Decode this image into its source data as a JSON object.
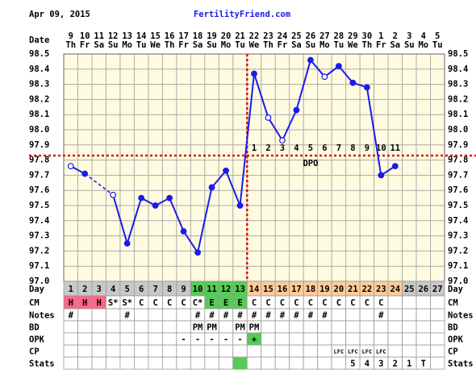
{
  "header": {
    "date": "Apr 09, 2015",
    "site": "FertilityFriend.com"
  },
  "chart_data": {
    "type": "line",
    "date_label": "Date",
    "dates": [
      9,
      10,
      11,
      12,
      13,
      14,
      15,
      16,
      17,
      18,
      19,
      20,
      21,
      22,
      23,
      24,
      25,
      26,
      27,
      28,
      29,
      30,
      1,
      2,
      3,
      4,
      5
    ],
    "weekdays": [
      "Th",
      "Fr",
      "Sa",
      "Su",
      "Mo",
      "Tu",
      "We",
      "Th",
      "Fr",
      "Sa",
      "Su",
      "Mo",
      "Tu",
      "We",
      "Th",
      "Fr",
      "Sa",
      "Su",
      "Mo",
      "Tu",
      "We",
      "Th",
      "Fr",
      "Sa",
      "Su",
      "Mo",
      "Tu"
    ],
    "series": [
      {
        "color": "#1a1aee",
        "values": [
          97.76,
          97.71,
          null,
          97.57,
          97.25,
          97.55,
          97.5,
          97.55,
          97.33,
          97.19,
          97.62,
          97.73,
          97.5,
          98.37,
          98.08,
          97.93,
          98.13,
          98.46,
          98.35,
          98.42,
          98.31,
          98.28,
          97.7,
          97.76,
          null,
          null,
          null
        ],
        "markers": [
          "open",
          "filled",
          null,
          "open",
          "filled",
          "filled",
          "filled",
          "filled",
          "filled",
          "filled",
          "filled",
          "filled",
          "filled",
          "filled",
          "open",
          "open",
          "filled",
          "filled",
          "open",
          "filled",
          "filled",
          "filled",
          "filled",
          "filled",
          null,
          null,
          null
        ]
      }
    ],
    "ylim": [
      97,
      98.5
    ],
    "yticks": [
      {
        "value": 97,
        "label": "97.0"
      },
      97.1,
      97.2,
      97.3,
      97.4,
      97.5,
      97.6,
      97.7,
      97.8,
      97.9,
      {
        "value": 98,
        "label": "98.0"
      },
      98.1,
      98.2,
      98.3,
      98.4,
      98.5
    ],
    "grid": true,
    "coverline": 97.83,
    "ovulation_day": 13,
    "line_color": "#dd1111",
    "dpo_label": "DPO",
    "dpo": [
      null,
      null,
      null,
      null,
      null,
      null,
      null,
      null,
      null,
      null,
      null,
      null,
      null,
      1,
      2,
      3,
      4,
      5,
      6,
      7,
      8,
      9,
      10,
      11,
      null,
      null,
      null
    ],
    "rows": [
      {
        "label": "Day",
        "cells": [
          1,
          2,
          3,
          4,
          5,
          6,
          7,
          8,
          9,
          10,
          11,
          12,
          13,
          14,
          15,
          16,
          17,
          18,
          19,
          20,
          21,
          22,
          23,
          24,
          25,
          26,
          27
        ],
        "colors": [
          "#c8c8c8",
          "#c8c8c8",
          "#c8c8c8",
          "#c8c8c8",
          "#c8c8c8",
          "#c8c8c8",
          "#c8c8c8",
          "#c8c8c8",
          "#c8c8c8",
          "#55cc55",
          "#55cc55",
          "#55cc55",
          "#55cc55",
          "#ffcc99",
          "#ffcc99",
          "#ffcc99",
          "#ffcc99",
          "#ffcc99",
          "#ffcc99",
          "#ffcc99",
          "#ffcc99",
          "#ffcc99",
          "#ffcc99",
          "#ffcc99",
          "#c8c8c8",
          "#c8c8c8",
          "#c8c8c8"
        ]
      },
      {
        "label": "CM",
        "cells": [
          "H",
          "H",
          "H",
          "S*",
          "S*",
          "C",
          "C",
          "C",
          "C",
          "C*",
          "E",
          "E",
          "E",
          "C",
          "C",
          "C",
          "C",
          "C",
          "C",
          "C",
          "C",
          "C",
          "C",
          null,
          null,
          null,
          null
        ],
        "colors": [
          "#ff6688",
          "#ff6688",
          "#ff6688",
          null,
          null,
          null,
          null,
          null,
          null,
          null,
          "#55cc55",
          "#55cc55",
          "#55cc55",
          null,
          null,
          null,
          null,
          null,
          null,
          null,
          null,
          null,
          null,
          null,
          null,
          null,
          null
        ]
      },
      {
        "label": "Notes",
        "cells": [
          "#",
          null,
          null,
          null,
          "#",
          null,
          null,
          null,
          null,
          "#",
          "#",
          "#",
          "#",
          "#",
          "#",
          "#",
          "#",
          "#",
          "#",
          null,
          null,
          null,
          "#",
          null,
          null,
          null,
          null
        ]
      },
      {
        "label": "BD",
        "cells": [
          null,
          null,
          null,
          null,
          null,
          null,
          null,
          null,
          null,
          "PM",
          "PM",
          null,
          "PM",
          "PM",
          null,
          null,
          null,
          null,
          null,
          null,
          null,
          null,
          null,
          null,
          null,
          null,
          null
        ]
      },
      {
        "label": "OPK",
        "cells": [
          null,
          null,
          null,
          null,
          null,
          null,
          null,
          null,
          "-",
          "-",
          "-",
          "-",
          "-",
          "+",
          null,
          null,
          null,
          null,
          null,
          null,
          null,
          null,
          null,
          null,
          null,
          null,
          null
        ],
        "colors": [
          null,
          null,
          null,
          null,
          null,
          null,
          null,
          null,
          null,
          null,
          null,
          null,
          null,
          "#55cc55",
          null,
          null,
          null,
          null,
          null,
          null,
          null,
          null,
          null,
          null,
          null,
          null,
          null
        ]
      },
      {
        "label": "CP",
        "cells": [
          null,
          null,
          null,
          null,
          null,
          null,
          null,
          null,
          null,
          null,
          null,
          null,
          null,
          null,
          null,
          null,
          null,
          null,
          null,
          "LFC",
          "LFC",
          "LFC",
          "LFC",
          null,
          null,
          null,
          null
        ]
      },
      {
        "label": "Stats",
        "cells": [
          null,
          null,
          null,
          null,
          null,
          null,
          null,
          null,
          null,
          null,
          null,
          null,
          null,
          null,
          null,
          null,
          null,
          null,
          null,
          null,
          5,
          4,
          3,
          2,
          1,
          "T",
          null
        ],
        "colors": [
          null,
          null,
          null,
          null,
          null,
          null,
          null,
          null,
          null,
          null,
          null,
          null,
          "#55cc55",
          null,
          null,
          null,
          null,
          null,
          null,
          null,
          null,
          null,
          null,
          null,
          null,
          null,
          null
        ]
      }
    ]
  }
}
